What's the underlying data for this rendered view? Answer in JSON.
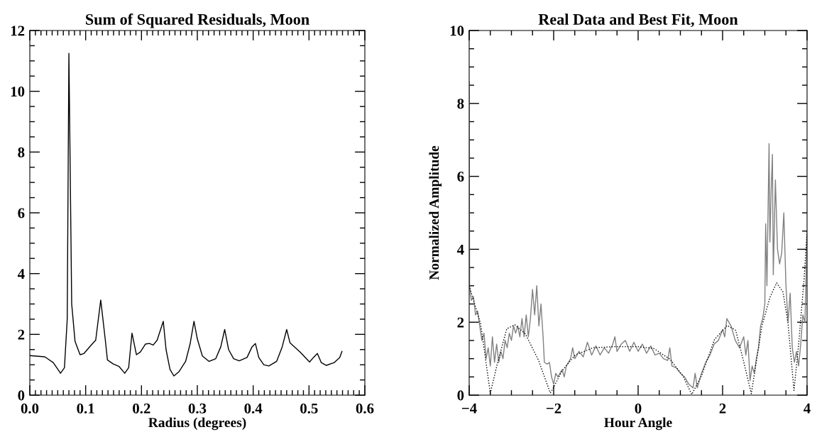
{
  "chart_data": [
    {
      "type": "line",
      "title": "Sum of Squared Residuals, Moon",
      "xlabel": "Radius (degrees)",
      "xlim": [
        0,
        0.6
      ],
      "ylim": [
        0,
        12
      ],
      "xticks": [
        {
          "value": 0,
          "label": "0.0"
        },
        {
          "value": 0.1,
          "label": "0.1"
        },
        {
          "value": 0.2,
          "label": "0.2"
        },
        {
          "value": 0.3,
          "label": "0.3"
        },
        {
          "value": 0.4,
          "label": "0.4"
        },
        {
          "value": 0.5,
          "label": "0.5"
        },
        {
          "value": 0.6,
          "label": "0.6"
        },
        {
          "value": 0.01,
          "label": null
        },
        {
          "value": 0.02,
          "label": null
        },
        {
          "value": 0.03,
          "label": null
        },
        {
          "value": 0.04,
          "label": null
        },
        {
          "value": 0.05,
          "label": null
        },
        {
          "value": 0.06,
          "label": null
        },
        {
          "value": 0.07,
          "label": null
        },
        {
          "value": 0.08,
          "label": null
        },
        {
          "value": 0.09,
          "label": null
        },
        {
          "value": 0.11,
          "label": null
        },
        {
          "value": 0.12,
          "label": null
        },
        {
          "value": 0.13,
          "label": null
        },
        {
          "value": 0.14,
          "label": null
        },
        {
          "value": 0.15,
          "label": null
        },
        {
          "value": 0.16,
          "label": null
        },
        {
          "value": 0.17,
          "label": null
        },
        {
          "value": 0.18,
          "label": null
        },
        {
          "value": 0.19,
          "label": null
        },
        {
          "value": 0.21,
          "label": null
        },
        {
          "value": 0.22,
          "label": null
        },
        {
          "value": 0.23,
          "label": null
        },
        {
          "value": 0.24,
          "label": null
        },
        {
          "value": 0.25,
          "label": null
        },
        {
          "value": 0.26,
          "label": null
        },
        {
          "value": 0.27,
          "label": null
        },
        {
          "value": 0.28,
          "label": null
        },
        {
          "value": 0.29,
          "label": null
        },
        {
          "value": 0.31,
          "label": null
        },
        {
          "value": 0.32,
          "label": null
        },
        {
          "value": 0.33,
          "label": null
        },
        {
          "value": 0.34,
          "label": null
        },
        {
          "value": 0.35,
          "label": null
        },
        {
          "value": 0.36,
          "label": null
        },
        {
          "value": 0.37,
          "label": null
        },
        {
          "value": 0.38,
          "label": null
        },
        {
          "value": 0.39,
          "label": null
        },
        {
          "value": 0.41,
          "label": null
        },
        {
          "value": 0.42,
          "label": null
        },
        {
          "value": 0.43,
          "label": null
        },
        {
          "value": 0.44,
          "label": null
        },
        {
          "value": 0.45,
          "label": null
        },
        {
          "value": 0.46,
          "label": null
        },
        {
          "value": 0.47,
          "label": null
        },
        {
          "value": 0.48,
          "label": null
        },
        {
          "value": 0.49,
          "label": null
        },
        {
          "value": 0.51,
          "label": null
        },
        {
          "value": 0.52,
          "label": null
        },
        {
          "value": 0.53,
          "label": null
        },
        {
          "value": 0.54,
          "label": null
        },
        {
          "value": 0.55,
          "label": null
        },
        {
          "value": 0.56,
          "label": null
        },
        {
          "value": 0.57,
          "label": null
        },
        {
          "value": 0.58,
          "label": null
        },
        {
          "value": 0.59,
          "label": null
        }
      ],
      "yticks": [
        0,
        2,
        4,
        6,
        8,
        10,
        12,
        {
          "value": 0.5,
          "label": null
        },
        {
          "value": 1,
          "label": null
        },
        {
          "value": 1.5,
          "label": null
        },
        {
          "value": 2.5,
          "label": null
        },
        {
          "value": 3,
          "label": null
        },
        {
          "value": 3.5,
          "label": null
        },
        {
          "value": 4.5,
          "label": null
        },
        {
          "value": 5,
          "label": null
        },
        {
          "value": 5.5,
          "label": null
        },
        {
          "value": 6.5,
          "label": null
        },
        {
          "value": 7,
          "label": null
        },
        {
          "value": 7.5,
          "label": null
        },
        {
          "value": 8.5,
          "label": null
        },
        {
          "value": 9,
          "label": null
        },
        {
          "value": 9.5,
          "label": null
        },
        {
          "value": 10.5,
          "label": null
        },
        {
          "value": 11,
          "label": null
        },
        {
          "value": 11.5,
          "label": null
        }
      ],
      "line_style": "solid",
      "marker": "none",
      "grid": false,
      "series": [
        {
          "color": "#000000",
          "x": [
            0,
            0.027,
            0.042,
            0.055,
            0.062,
            0.067,
            0.07,
            0.075,
            0.081,
            0.09,
            0.097,
            0.109,
            0.118,
            0.127,
            0.135,
            0.139,
            0.149,
            0.16,
            0.17,
            0.177,
            0.183,
            0.191,
            0.198,
            0.207,
            0.214,
            0.221,
            0.228,
            0.239,
            0.244,
            0.251,
            0.258,
            0.267,
            0.279,
            0.287,
            0.294,
            0.3,
            0.309,
            0.321,
            0.333,
            0.342,
            0.349,
            0.356,
            0.365,
            0.375,
            0.389,
            0.398,
            0.404,
            0.41,
            0.419,
            0.428,
            0.442,
            0.452,
            0.46,
            0.466,
            0.484,
            0.501,
            0.508,
            0.515,
            0.522,
            0.531,
            0.545,
            0.555,
            0.559
          ],
          "values": [
            1.3,
            1.26,
            1.07,
            0.72,
            0.9,
            2.5,
            11.25,
            3.0,
            1.77,
            1.33,
            1.37,
            1.63,
            1.81,
            3.13,
            1.85,
            1.16,
            1.03,
            0.94,
            0.72,
            0.9,
            2.04,
            1.33,
            1.42,
            1.68,
            1.7,
            1.65,
            1.81,
            2.43,
            1.5,
            0.85,
            0.63,
            0.77,
            1.11,
            1.68,
            2.43,
            1.85,
            1.29,
            1.11,
            1.2,
            1.59,
            2.16,
            1.5,
            1.2,
            1.13,
            1.24,
            1.59,
            1.7,
            1.24,
            1.0,
            0.96,
            1.11,
            1.59,
            2.16,
            1.72,
            1.42,
            1.09,
            1.24,
            1.37,
            1.07,
            0.98,
            1.07,
            1.24,
            1.44
          ]
        }
      ]
    },
    {
      "type": "line",
      "title": "Real Data and Best Fit, Moon",
      "xlabel": "Hour Angle",
      "ylabel": "Normalized Amplitude",
      "xlim": [
        -4,
        4
      ],
      "ylim": [
        0,
        10
      ],
      "xticks": [
        {
          "value": -4,
          "label": "−4"
        },
        {
          "value": -2,
          "label": "−2"
        },
        0,
        2,
        4,
        {
          "value": -3.5,
          "label": null
        },
        {
          "value": -3,
          "label": null
        },
        {
          "value": -2.5,
          "label": null
        },
        {
          "value": -1.5,
          "label": null
        },
        {
          "value": -1,
          "label": null
        },
        {
          "value": -0.5,
          "label": null
        },
        {
          "value": 0.5,
          "label": null
        },
        {
          "value": 1,
          "label": null
        },
        {
          "value": 1.5,
          "label": null
        },
        {
          "value": 2.5,
          "label": null
        },
        {
          "value": 3,
          "label": null
        },
        {
          "value": 3.5,
          "label": null
        }
      ],
      "yticks": [
        0,
        2,
        4,
        6,
        8,
        10,
        {
          "value": 0.5,
          "label": null
        },
        {
          "value": 1,
          "label": null
        },
        {
          "value": 1.5,
          "label": null
        },
        {
          "value": 2.5,
          "label": null
        },
        {
          "value": 3,
          "label": null
        },
        {
          "value": 3.5,
          "label": null
        },
        {
          "value": 4.5,
          "label": null
        },
        {
          "value": 5,
          "label": null
        },
        {
          "value": 5.5,
          "label": null
        },
        {
          "value": 6.5,
          "label": null
        },
        {
          "value": 7,
          "label": null
        },
        {
          "value": 7.5,
          "label": null
        },
        {
          "value": 8.5,
          "label": null
        },
        {
          "value": 9,
          "label": null
        },
        {
          "value": 9.5,
          "label": null
        }
      ],
      "marker": "none",
      "grid": false,
      "series": [
        {
          "color": "#808080",
          "line_style": "solid",
          "x": [
            -4.0,
            -3.99,
            -3.95,
            -3.9,
            -3.85,
            -3.8,
            -3.75,
            -3.7,
            -3.65,
            -3.6,
            -3.55,
            -3.5,
            -3.45,
            -3.4,
            -3.35,
            -3.3,
            -3.25,
            -3.2,
            -3.15,
            -3.1,
            -3.05,
            -3.0,
            -2.95,
            -2.9,
            -2.85,
            -2.8,
            -2.75,
            -2.7,
            -2.65,
            -2.6,
            -2.55,
            -2.5,
            -2.45,
            -2.4,
            -2.35,
            -2.3,
            -2.25,
            -2.22,
            -2.15,
            -2.1,
            -2.05,
            -2.0,
            -1.95,
            -1.9,
            -1.85,
            -1.8,
            -1.75,
            -1.7,
            -1.6,
            -1.55,
            -1.5,
            -1.4,
            -1.3,
            -1.2,
            -1.1,
            -1.0,
            -0.9,
            -0.8,
            -0.7,
            -0.6,
            -0.55,
            -0.5,
            -0.4,
            -0.3,
            -0.2,
            -0.1,
            0.0,
            0.1,
            0.2,
            0.3,
            0.4,
            0.5,
            0.6,
            0.7,
            0.75,
            0.8,
            0.9,
            1.0,
            1.1,
            1.2,
            1.3,
            1.35,
            1.4,
            1.5,
            1.6,
            1.7,
            1.8,
            1.9,
            2.0,
            2.05,
            2.1,
            2.2,
            2.3,
            2.4,
            2.5,
            2.55,
            2.6,
            2.65,
            2.7,
            2.75,
            2.8,
            2.85,
            2.9,
            2.95,
            3.0,
            3.02,
            3.05,
            3.1,
            3.12,
            3.15,
            3.18,
            3.2,
            3.25,
            3.3,
            3.35,
            3.4,
            3.45,
            3.5,
            3.55,
            3.6,
            3.65,
            3.7,
            3.75,
            3.8,
            3.85,
            3.9,
            3.95,
            4.0
          ],
          "values": [
            8.6,
            3.0,
            2.6,
            2.7,
            2.2,
            2.3,
            1.9,
            1.5,
            1.7,
            1.0,
            1.3,
            0.8,
            1.6,
            0.9,
            1.4,
            0.9,
            1.2,
            1.0,
            1.5,
            1.3,
            1.7,
            1.5,
            1.9,
            1.7,
            1.9,
            1.6,
            2.1,
            1.6,
            2.2,
            1.6,
            2.1,
            2.9,
            2.2,
            3.0,
            1.9,
            2.5,
            1.6,
            0.9,
            0.85,
            0.9,
            0.5,
            0.3,
            0.6,
            0.5,
            0.6,
            0.7,
            0.5,
            0.8,
            1.0,
            1.3,
            1.0,
            1.2,
            1.05,
            1.45,
            1.1,
            1.35,
            1.1,
            1.3,
            1.15,
            1.4,
            1.6,
            1.2,
            1.4,
            1.5,
            1.2,
            1.45,
            1.2,
            1.4,
            1.15,
            1.35,
            1.1,
            1.15,
            1.0,
            0.95,
            1.3,
            0.8,
            0.75,
            0.6,
            0.5,
            0.3,
            0.2,
            0.6,
            0.2,
            0.6,
            0.9,
            1.1,
            1.4,
            1.5,
            1.8,
            1.6,
            2.1,
            1.9,
            1.5,
            1.3,
            1.6,
            1.1,
            1.5,
            0.4,
            0.8,
            0.6,
            1.0,
            1.3,
            1.9,
            2.1,
            2.5,
            4.7,
            3.0,
            6.9,
            4.2,
            5.6,
            6.6,
            3.3,
            5.9,
            4.0,
            3.6,
            3.9,
            5.0,
            3.0,
            2.0,
            2.8,
            1.3,
            0.9,
            1.2,
            0.8,
            1.4,
            2.2,
            2.0,
            4.4
          ]
        },
        {
          "color": "#000000",
          "line_style": "dotted",
          "x": [
            -4.0,
            -3.73,
            -3.5,
            -3.33,
            -3.11,
            -2.92,
            -2.67,
            -2.36,
            -2.08,
            -2.02,
            -1.8,
            -1.49,
            -1.06,
            -0.56,
            0.0,
            0.37,
            0.75,
            1.06,
            1.27,
            1.5,
            1.81,
            2.11,
            2.31,
            2.49,
            2.68,
            2.93,
            3.12,
            3.28,
            3.43,
            3.55,
            3.69,
            3.8,
            3.93,
            4.0
          ],
          "values": [
            3.0,
            1.96,
            0.05,
            0.88,
            1.82,
            1.93,
            1.68,
            0.96,
            0.06,
            0.17,
            0.67,
            1.1,
            1.3,
            1.33,
            1.33,
            1.28,
            0.99,
            0.53,
            0.02,
            0.53,
            1.53,
            1.91,
            1.78,
            0.96,
            0.04,
            1.89,
            2.68,
            3.08,
            2.83,
            1.96,
            0.13,
            1.39,
            3.19,
            4.5
          ]
        }
      ]
    }
  ]
}
